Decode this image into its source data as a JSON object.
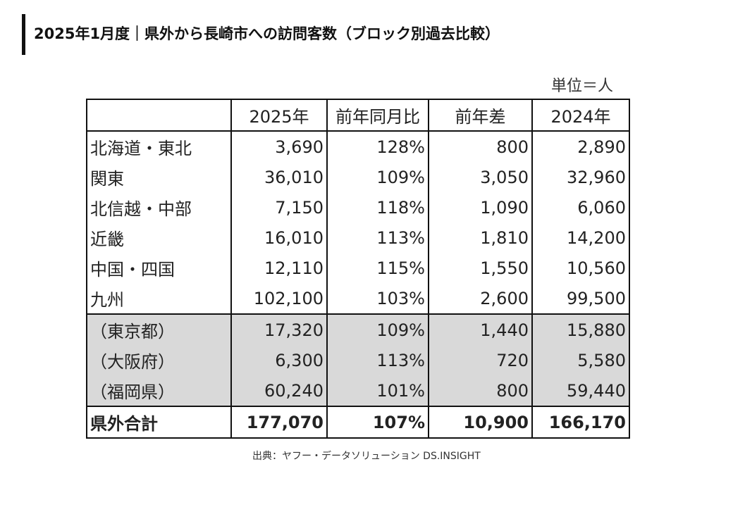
{
  "title": "2025年1月度｜県外から長崎市への訪問客数（ブロック別過去比較）",
  "unit_label": "単位＝人",
  "table": {
    "headers": [
      "",
      "2025年",
      "前年同月比",
      "前年差",
      "2024年"
    ],
    "rows": [
      [
        "北海道・東北",
        "3,690",
        "128%",
        "800",
        "2,890"
      ],
      [
        "関東",
        "36,010",
        "109%",
        "3,050",
        "32,960"
      ],
      [
        "北信越・中部",
        "7,150",
        "118%",
        "1,090",
        "6,060"
      ],
      [
        "近畿",
        "16,010",
        "113%",
        "1,810",
        "14,200"
      ],
      [
        "中国・四国",
        "12,110",
        "115%",
        "1,550",
        "10,560"
      ],
      [
        "九州",
        "102,100",
        "103%",
        "2,600",
        "99,500"
      ]
    ],
    "sub_rows": [
      [
        "（東京都）",
        "17,320",
        "109%",
        "1,440",
        "15,880"
      ],
      [
        "（大阪府）",
        "6,300",
        "113%",
        "720",
        "5,580"
      ],
      [
        "（福岡県）",
        "60,240",
        "101%",
        "800",
        "59,440"
      ]
    ],
    "total": [
      "県外合計",
      "177,070",
      "107%",
      "10,900",
      "166,170"
    ]
  },
  "source": "出典：ヤフー・データソリューション DS.INSIGHT"
}
